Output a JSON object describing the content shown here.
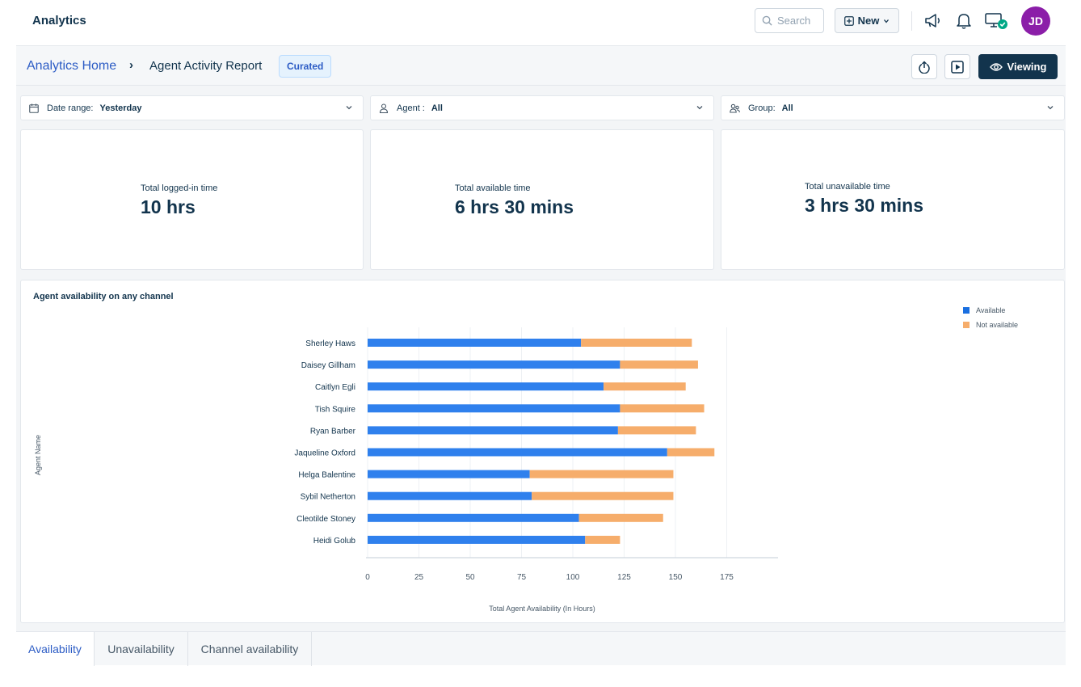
{
  "topbar": {
    "title": "Analytics",
    "search_placeholder": "Search",
    "new_label": "New",
    "avatar_initials": "JD"
  },
  "header": {
    "breadcrumb_home": "Analytics Home",
    "breadcrumb_separator": "›",
    "breadcrumb_current": "Agent Activity Report",
    "badge": "Curated",
    "viewing_label": "Viewing"
  },
  "filters": [
    {
      "label": "Date range:",
      "value": "Yesterday"
    },
    {
      "label": "Agent :",
      "value": "All"
    },
    {
      "label": "Group:",
      "value": "All"
    }
  ],
  "kpis": [
    {
      "label": "Total logged-in time",
      "value": "10 hrs"
    },
    {
      "label": "Total available time",
      "value": "6 hrs 30 mins"
    },
    {
      "label": "Total unavailable time",
      "value": "3 hrs 30 mins"
    }
  ],
  "colors": {
    "available": "#2f80ed",
    "available_dark": "#1a6fe0",
    "not_available": "#f6ad6b",
    "primary_dark": "#12344d",
    "link": "#2c5cc5"
  },
  "chart_data": {
    "type": "bar",
    "orientation": "horizontal",
    "stacked": true,
    "title": "Agent availability on any channel",
    "xlabel": "Total Agent Availability (In Hours)",
    "ylabel": "Agent Name",
    "xlim": [
      0,
      200
    ],
    "xticks": [
      0,
      25,
      50,
      75,
      100,
      125,
      150,
      175
    ],
    "legend_position": "top-right",
    "grid": "vertical",
    "categories": [
      "Sherley Haws",
      "Daisey Gillham",
      "Caitlyn Egli",
      "Tish Squire",
      "Ryan Barber",
      "Jaqueline Oxford",
      "Helga Balentine",
      "Sybil Netherton",
      "Cleotilde Stoney",
      "Heidi Golub"
    ],
    "series": [
      {
        "name": "Available",
        "values": [
          104,
          123,
          115,
          123,
          122,
          146,
          79,
          80,
          103,
          106
        ]
      },
      {
        "name": "Not available",
        "values": [
          54,
          38,
          40,
          41,
          38,
          23,
          70,
          69,
          41,
          17
        ]
      }
    ]
  },
  "tabs": [
    {
      "label": "Availability",
      "active": true
    },
    {
      "label": "Unavailability",
      "active": false
    },
    {
      "label": "Channel availability",
      "active": false
    }
  ]
}
